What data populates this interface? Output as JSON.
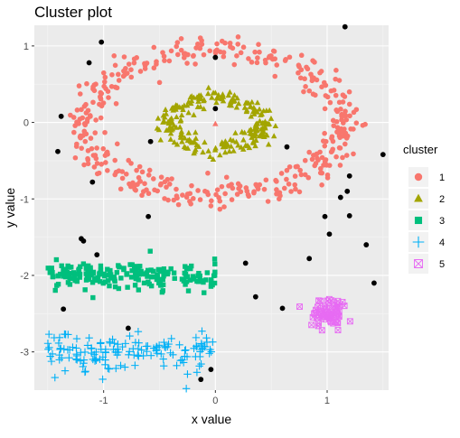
{
  "chart_data": {
    "type": "scatter",
    "title": "Cluster plot",
    "xlabel": "x value",
    "ylabel": "y value",
    "xlim": [
      -1.62,
      1.55
    ],
    "ylim": [
      -3.5,
      1.27
    ],
    "x_ticks": [
      -1,
      0,
      1
    ],
    "y_ticks": [
      1,
      0,
      -1,
      -2,
      -3
    ],
    "x_tick_labels": [
      "-1",
      "0",
      "1"
    ],
    "y_tick_labels": [
      "1",
      "0",
      "-1",
      "-2",
      "-3"
    ],
    "grid": true,
    "background": "#EBEBEB",
    "legend": {
      "title": "cluster",
      "position": "right",
      "entries": [
        {
          "label": "1",
          "color": "#F8766D",
          "shape": "circle"
        },
        {
          "label": "2",
          "color": "#A3A500",
          "shape": "triangle"
        },
        {
          "label": "3",
          "color": "#00BF7D",
          "shape": "square"
        },
        {
          "label": "4",
          "color": "#00B0F6",
          "shape": "plus"
        },
        {
          "label": "5",
          "color": "#E76BF3",
          "shape": "square-cross"
        }
      ]
    },
    "series": [
      {
        "name": "1",
        "color": "#F8766D",
        "shape": "circle",
        "count": 420,
        "description_of_region": "noisy ring",
        "center": [
          0.0,
          0.0
        ],
        "radius_x": 1.15,
        "radius_y": 0.95,
        "jitter": 0.09
      },
      {
        "name": "2",
        "color": "#A3A500",
        "shape": "triangle",
        "count": 230,
        "description_of_region": "inner ring",
        "center": [
          0.0,
          0.0
        ],
        "radius_x": 0.42,
        "radius_y": 0.32,
        "jitter": 0.06
      },
      {
        "name": "3",
        "color": "#00BF7D",
        "shape": "square",
        "count": 200,
        "description_of_region": "horizontal band",
        "x_range": [
          -1.5,
          0.0
        ],
        "y_center": -2.0,
        "y_spread": 0.09
      },
      {
        "name": "4",
        "color": "#00B0F6",
        "shape": "plus",
        "count": 150,
        "description_of_region": "horizontal band",
        "x_range": [
          -1.5,
          0.0
        ],
        "y_center": -3.0,
        "y_spread": 0.09
      },
      {
        "name": "5",
        "color": "#E76BF3",
        "shape": "square-cross",
        "count": 70,
        "description_of_region": "small blob",
        "center": [
          1.02,
          -2.5
        ],
        "spread": [
          0.08,
          0.1
        ]
      }
    ],
    "noise_points": [
      [
        1.16,
        1.25
      ],
      [
        -1.02,
        1.05
      ],
      [
        -1.13,
        0.78
      ],
      [
        0.0,
        0.85
      ],
      [
        -1.38,
        0.08
      ],
      [
        0.0,
        0.18
      ],
      [
        -1.41,
        -0.38
      ],
      [
        -0.58,
        -0.25
      ],
      [
        1.5,
        -0.42
      ],
      [
        0.64,
        -0.32
      ],
      [
        -1.1,
        -0.78
      ],
      [
        1.2,
        -0.7
      ],
      [
        1.18,
        -0.9
      ],
      [
        1.12,
        -0.98
      ],
      [
        -0.6,
        -1.23
      ],
      [
        0.98,
        -1.23
      ],
      [
        1.2,
        -1.22
      ],
      [
        1.02,
        -1.46
      ],
      [
        -1.2,
        -1.52
      ],
      [
        -1.18,
        -1.55
      ],
      [
        1.35,
        -1.6
      ],
      [
        -1.06,
        -1.73
      ],
      [
        0.84,
        -1.78
      ],
      [
        0.27,
        -1.84
      ],
      [
        1.42,
        -2.1
      ],
      [
        0.36,
        -2.28
      ],
      [
        -1.36,
        -2.44
      ],
      [
        0.6,
        -2.43
      ],
      [
        -0.78,
        -2.69
      ],
      [
        -0.04,
        -3.23
      ],
      [
        -0.13,
        -3.36
      ]
    ],
    "noise_color": "#000000"
  }
}
